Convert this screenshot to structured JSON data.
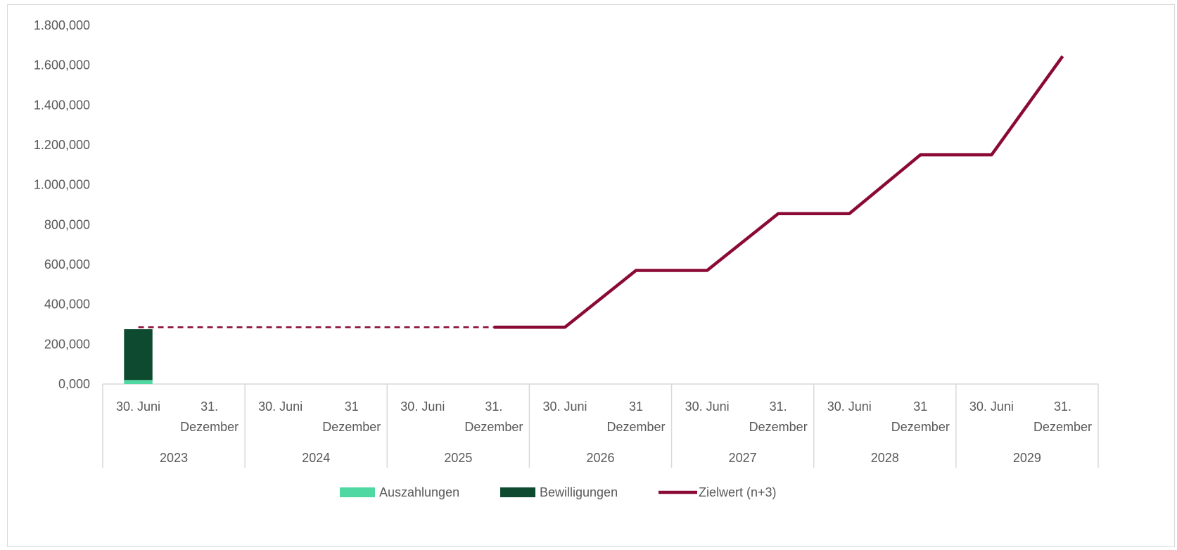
{
  "chart_data": {
    "type": "bar",
    "title": "",
    "xlabel": "",
    "ylabel": "",
    "ylim": [
      0,
      1800000
    ],
    "y_ticks": [
      "0,000",
      "200,000",
      "400,000",
      "600,000",
      "800,000",
      "1.000,000",
      "1.200,000",
      "1.400,000",
      "1.600,000",
      "1.800,000"
    ],
    "y_tick_values": [
      0,
      200000,
      400000,
      600000,
      800000,
      1000000,
      1200000,
      1400000,
      1600000,
      1800000
    ],
    "categories": [
      {
        "label": "30. Juni",
        "year": "2023"
      },
      {
        "label": "31. Dezember",
        "year": "2023"
      },
      {
        "label": "30. Juni",
        "year": "2024"
      },
      {
        "label": "31 Dezember",
        "year": "2024"
      },
      {
        "label": "30. Juni",
        "year": "2025"
      },
      {
        "label": "31. Dezember",
        "year": "2025"
      },
      {
        "label": "30. Juni",
        "year": "2026"
      },
      {
        "label": "31 Dezember",
        "year": "2026"
      },
      {
        "label": "30. Juni",
        "year": "2027"
      },
      {
        "label": "31. Dezember",
        "year": "2027"
      },
      {
        "label": "30. Juni",
        "year": "2028"
      },
      {
        "label": "31 Dezember",
        "year": "2028"
      },
      {
        "label": "30. Juni",
        "year": "2029"
      },
      {
        "label": "31. Dezember",
        "year": "2029"
      }
    ],
    "years": [
      "2023",
      "2024",
      "2025",
      "2026",
      "2027",
      "2028",
      "2029"
    ],
    "grid": false,
    "legend_position": "bottom",
    "series": [
      {
        "name": "Auszahlungen",
        "type": "bar",
        "stack": "total",
        "color": "#4fd8a1",
        "values": [
          20000,
          null,
          null,
          null,
          null,
          null,
          null,
          null,
          null,
          null,
          null,
          null,
          null,
          null
        ]
      },
      {
        "name": "Bewilligungen",
        "type": "bar",
        "stack": "total",
        "color": "#0d4a30",
        "values": [
          255000,
          null,
          null,
          null,
          null,
          null,
          null,
          null,
          null,
          null,
          null,
          null,
          null,
          null
        ]
      },
      {
        "name": "Zielwert (n+3)",
        "type": "line",
        "color": "#8b0a35",
        "values": [
          285000,
          285000,
          285000,
          285000,
          285000,
          285000,
          285000,
          570000,
          570000,
          855000,
          855000,
          1150000,
          1150000,
          1645000
        ],
        "dashed_until_index": 5
      }
    ]
  }
}
